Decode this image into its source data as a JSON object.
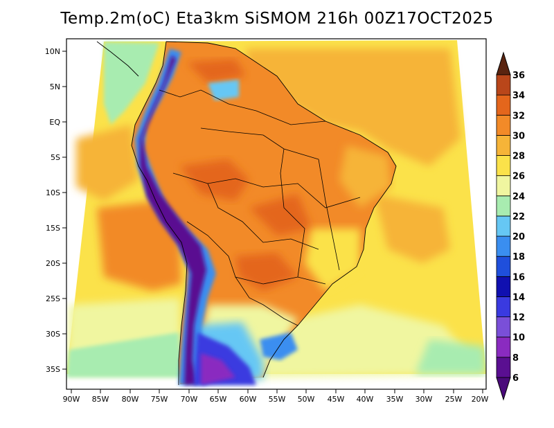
{
  "title": "Temp.2m(oC) Eta3km SiSMOM 216h 00Z17OCT2025",
  "variable": "2 m air temperature",
  "units": "oC",
  "map": {
    "lat_ticks": [
      "10N",
      "5N",
      "EQ",
      "5S",
      "10S",
      "15S",
      "20S",
      "25S",
      "30S",
      "35S"
    ],
    "lon_ticks": [
      "90W",
      "85W",
      "80W",
      "75W",
      "70W",
      "65W",
      "60W",
      "55W",
      "50W",
      "45W",
      "40W",
      "35W",
      "30W",
      "25W",
      "20W"
    ],
    "lat_range": [
      10,
      -38
    ],
    "lon_range": [
      -90,
      -20
    ]
  },
  "colorbar": {
    "labels": [
      "6",
      "8",
      "10",
      "12",
      "14",
      "16",
      "18",
      "20",
      "22",
      "24",
      "26",
      "28",
      "30",
      "32",
      "34",
      "36"
    ],
    "colors": [
      "#5a0f91",
      "#8a2bc0",
      "#7a4fd8",
      "#3a3ae0",
      "#1010b0",
      "#1f4fdc",
      "#3a8ef0",
      "#66c7f4",
      "#a8ecb0",
      "#f0f6a0",
      "#fbe24a",
      "#f6b438",
      "#f28a28",
      "#e4661c",
      "#b9461a",
      "#80301a"
    ],
    "low_color": "#4a0a7a",
    "high_color": "#5a2410"
  },
  "colors": {
    "ocean_warm": "#f6b438",
    "ocean_mild": "#fbe24a",
    "land_hot": "#f28a28",
    "andes_cold": "#5a0f91"
  }
}
